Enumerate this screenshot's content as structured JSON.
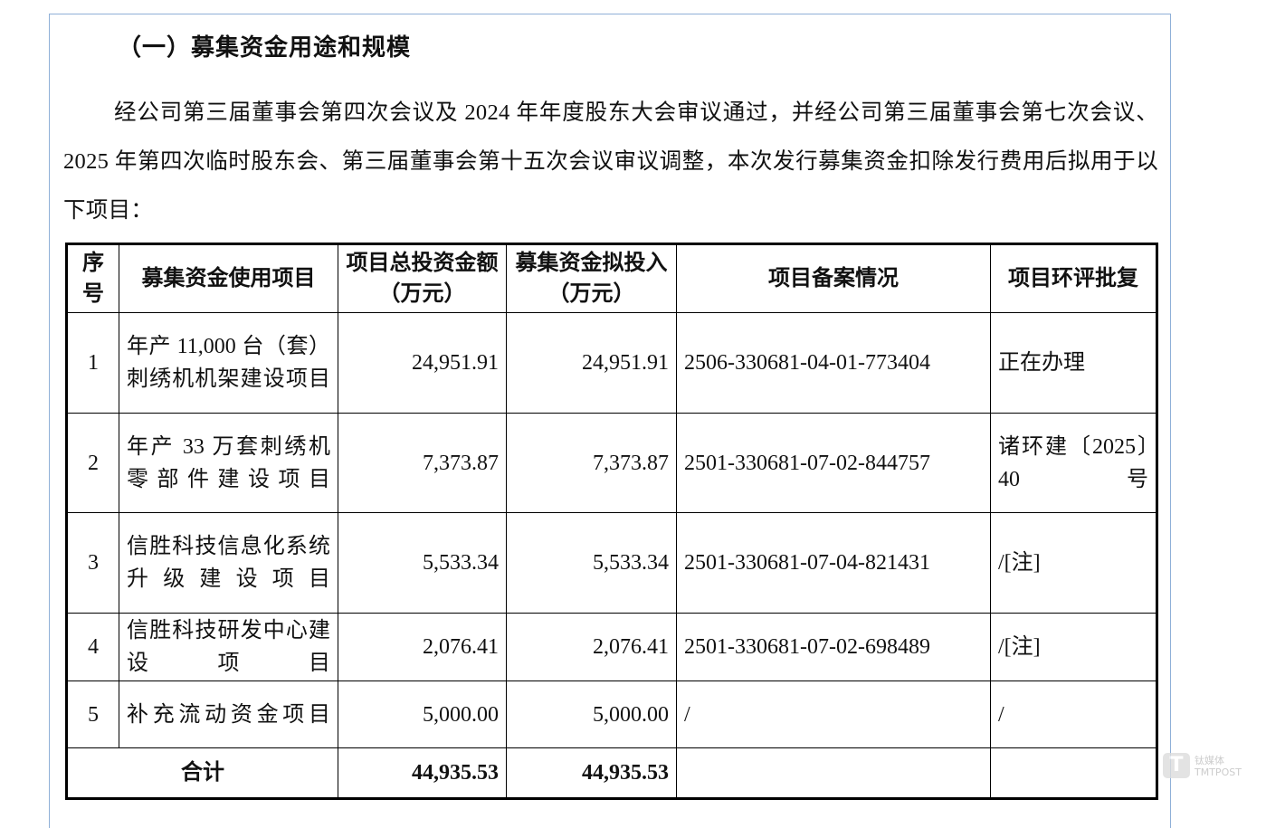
{
  "heading": "（一）募集资金用途和规模",
  "paragraph": "经公司第三届董事会第四次会议及 2024 年年度股东大会审议通过，并经公司第三届董事会第七次会议、2025 年第四次临时股东会、第三届董事会第十五次会议审议调整，本次发行募集资金扣除发行费用后拟用于以下项目：",
  "table": {
    "headers": [
      "序号",
      "募集资金使用项目",
      "项目总投资金额（万元）",
      "募集资金拟投入（万元）",
      "项目备案情况",
      "项目环评批复"
    ],
    "rows": [
      {
        "no": "1",
        "name": "年产 11,000 台（套）刺绣机机架建设项目",
        "total": "24,951.91",
        "raise": "24,951.91",
        "filing": "2506-330681-04-01-773404",
        "eia": "正在办理"
      },
      {
        "no": "2",
        "name": "年产 33 万套刺绣机零部件建设项目",
        "total": "7,373.87",
        "raise": "7,373.87",
        "filing": "2501-330681-07-02-844757",
        "eia": "诸环建〔2025〕40号"
      },
      {
        "no": "3",
        "name": "信胜科技信息化系统升级建设项目",
        "total": "5,533.34",
        "raise": "5,533.34",
        "filing": "2501-330681-07-04-821431",
        "eia": "/[注]"
      },
      {
        "no": "4",
        "name": "信胜科技研发中心建设项目",
        "total": "2,076.41",
        "raise": "2,076.41",
        "filing": "2501-330681-07-02-698489",
        "eia": "/[注]"
      },
      {
        "no": "5",
        "name": "补充流动资金项目",
        "total": "5,000.00",
        "raise": "5,000.00",
        "filing": "/",
        "eia": "/"
      }
    ],
    "total_row": {
      "label": "合计",
      "total": "44,935.53",
      "raise": "44,935.53"
    }
  },
  "watermark": {
    "logo": "T",
    "text": "钛媒体",
    "sub": "TMTPOST"
  }
}
